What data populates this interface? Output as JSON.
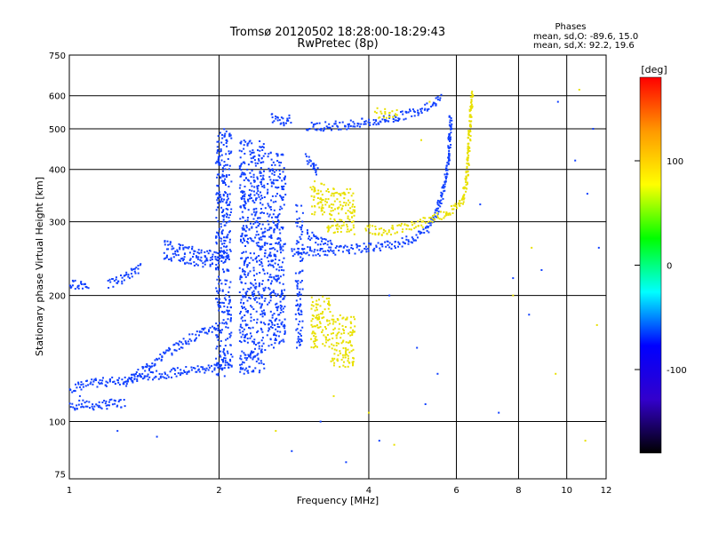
{
  "chart_data": {
    "type": "scatter",
    "title": "Tromsø 20120502 18:28:00-18:29:43",
    "subtitle": "RwPretec (8p)",
    "xlabel": "Frequency [MHz]",
    "ylabel": "Stationary phase Virtual Height [km]",
    "xscale": "log",
    "yscale": "log",
    "xlim": [
      1,
      12
    ],
    "ylim": [
      73,
      750
    ],
    "xticks": [
      1,
      2,
      4,
      6,
      8,
      10,
      12
    ],
    "yticks": [
      75,
      100,
      200,
      300,
      400,
      500,
      600,
      750
    ],
    "grid": true,
    "phases": {
      "heading": "Phases",
      "line_o": "mean, sd,O: -89.6, 15.0",
      "line_x": "mean, sd,X:  92.2, 19.6"
    },
    "colorbar": {
      "label": "[deg]",
      "range": [
        -180,
        180
      ],
      "ticks": [
        100,
        0,
        -100
      ],
      "colors": [
        "#ff0000",
        "#ff9900",
        "#ffff00",
        "#00ff00",
        "#00ffff",
        "#0000ff",
        "#3300cc",
        "#000000"
      ]
    },
    "series": [
      {
        "name": "O",
        "phase": -100,
        "color": "#1040ff",
        "segments": [
          [
            [
              1.0,
              108
            ],
            [
              1.05,
              110
            ],
            [
              1.12,
              109
            ],
            [
              1.2,
              110
            ],
            [
              1.3,
              111
            ]
          ],
          [
            [
              1.0,
              120
            ],
            [
              1.1,
              123
            ],
            [
              1.3,
              126
            ],
            [
              1.5,
              129
            ],
            [
              1.7,
              132
            ],
            [
              1.9,
              134
            ],
            [
              2.05,
              136
            ],
            [
              2.15,
              140
            ]
          ],
          [
            [
              1.3,
              124
            ],
            [
              1.45,
              136
            ],
            [
              1.6,
              148
            ],
            [
              1.75,
              158
            ],
            [
              1.9,
              165
            ],
            [
              2.0,
              170
            ]
          ],
          [
            [
              1.0,
              212
            ],
            [
              1.05,
              213
            ],
            [
              1.1,
              212
            ]
          ],
          [
            [
              1.2,
              212
            ],
            [
              1.3,
              222
            ],
            [
              1.4,
              234
            ]
          ],
          [
            [
              1.55,
              265
            ],
            [
              1.7,
              258
            ],
            [
              1.85,
              252
            ],
            [
              2.0,
              250
            ],
            [
              2.1,
              253
            ]
          ],
          [
            [
              1.55,
              250
            ],
            [
              1.7,
              244
            ],
            [
              1.85,
              240
            ],
            [
              2.0,
              242
            ]
          ],
          [
            [
              2.55,
              530
            ],
            [
              2.7,
              520
            ],
            [
              2.8,
              530
            ]
          ],
          [
            [
              3.0,
              505
            ],
            [
              3.5,
              510
            ],
            [
              4.0,
              518
            ],
            [
              4.5,
              530
            ],
            [
              5.0,
              552
            ],
            [
              5.4,
              575
            ],
            [
              5.6,
              595
            ]
          ],
          [
            [
              2.8,
              255
            ],
            [
              3.2,
              255
            ],
            [
              3.7,
              258
            ],
            [
              4.2,
              262
            ],
            [
              4.7,
              268
            ],
            [
              5.0,
              276
            ],
            [
              5.3,
              292
            ],
            [
              5.5,
              320
            ],
            [
              5.65,
              360
            ],
            [
              5.75,
              400
            ],
            [
              5.8,
              440
            ],
            [
              5.82,
              480
            ],
            [
              5.85,
              540
            ]
          ],
          [
            [
              3.0,
              280
            ],
            [
              3.2,
              270
            ],
            [
              3.4,
              262
            ]
          ],
          [
            [
              3.0,
              425
            ],
            [
              3.1,
              405
            ],
            [
              3.15,
              395
            ]
          ]
        ],
        "bands": [
          {
            "x": [
              1.97,
              2.12
            ],
            "y": [
              128,
              500
            ]
          },
          {
            "x": [
              2.2,
              2.48
            ],
            "y": [
              130,
              470
            ]
          },
          {
            "x": [
              2.5,
              2.72
            ],
            "y": [
              150,
              440
            ]
          },
          {
            "x": [
              2.85,
              2.95
            ],
            "y": [
              150,
              330
            ]
          }
        ],
        "sparse": [
          [
            1.05,
            115
          ],
          [
            1.25,
            95
          ],
          [
            1.5,
            92
          ],
          [
            2.8,
            85
          ],
          [
            3.2,
            100
          ],
          [
            3.6,
            80
          ],
          [
            4.2,
            90
          ],
          [
            4.4,
            200
          ],
          [
            5.0,
            150
          ],
          [
            5.2,
            110
          ],
          [
            5.5,
            130
          ],
          [
            6.7,
            330
          ],
          [
            7.3,
            105
          ],
          [
            7.8,
            220
          ],
          [
            8.4,
            180
          ],
          [
            8.9,
            230
          ],
          [
            9.6,
            580
          ],
          [
            10.4,
            420
          ],
          [
            11.0,
            350
          ],
          [
            11.3,
            500
          ],
          [
            11.6,
            260
          ]
        ]
      },
      {
        "name": "X",
        "phase": 100,
        "color": "#e8e000",
        "segments": [
          [
            [
              3.95,
              288
            ],
            [
              4.3,
              285
            ],
            [
              4.7,
              290
            ],
            [
              5.0,
              295
            ],
            [
              5.4,
              305
            ],
            [
              5.8,
              315
            ],
            [
              6.15,
              335
            ],
            [
              6.3,
              380
            ],
            [
              6.35,
              440
            ],
            [
              6.4,
              520
            ],
            [
              6.45,
              620
            ]
          ]
        ],
        "bands": [
          {
            "x": [
              3.05,
              3.3
            ],
            "y": [
              310,
              375
            ]
          },
          {
            "x": [
              3.3,
              3.75
            ],
            "y": [
              280,
              360
            ]
          },
          {
            "x": [
              3.05,
              3.35
            ],
            "y": [
              150,
              200
            ]
          },
          {
            "x": [
              3.35,
              3.75
            ],
            "y": [
              135,
              180
            ]
          },
          {
            "x": [
              4.1,
              4.6
            ],
            "y": [
              530,
              560
            ]
          }
        ],
        "sparse": [
          [
            2.6,
            95
          ],
          [
            3.4,
            115
          ],
          [
            4.0,
            105
          ],
          [
            4.5,
            88
          ],
          [
            5.1,
            470
          ],
          [
            5.3,
            580
          ],
          [
            7.8,
            200
          ],
          [
            8.5,
            260
          ],
          [
            9.5,
            130
          ],
          [
            10.6,
            620
          ],
          [
            10.9,
            90
          ],
          [
            11.5,
            170
          ]
        ]
      }
    ]
  }
}
